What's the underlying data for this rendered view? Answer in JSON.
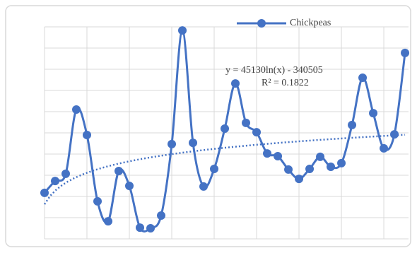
{
  "chart_data": {
    "type": "line",
    "smooth": true,
    "x": [
      1,
      2,
      3,
      4,
      5,
      6,
      7,
      8,
      9,
      10,
      11,
      12,
      13,
      14,
      15,
      16,
      17,
      18,
      19,
      20,
      21,
      22,
      23,
      24,
      25,
      26,
      27,
      28,
      29,
      30,
      31,
      32,
      33,
      34,
      35
    ],
    "series": [
      {
        "name": "Chickpeas",
        "color": "#4472c4",
        "values": [
          2.17,
          2.73,
          3.07,
          6.1,
          4.9,
          1.77,
          0.83,
          3.2,
          2.5,
          0.53,
          0.5,
          1.1,
          4.47,
          9.83,
          4.53,
          2.47,
          3.3,
          5.2,
          7.33,
          5.47,
          5.03,
          4.03,
          3.9,
          3.27,
          2.83,
          3.3,
          3.87,
          3.4,
          3.57,
          5.37,
          7.6,
          5.93,
          4.27,
          4.93,
          8.77
        ]
      }
    ],
    "xlim": [
      1,
      35.33
    ],
    "xticks": [
      1,
      5,
      9,
      13,
      17,
      21,
      25,
      29,
      33
    ],
    "ylim": [
      0,
      10
    ],
    "yticks": [
      0,
      1,
      2,
      3,
      4,
      5,
      6,
      7,
      8,
      9,
      10
    ],
    "grid": true,
    "legend": "top",
    "trendline": {
      "type": "logarithmic",
      "equation": "y = 45130ln(x) - 340505",
      "r_squared": "R² = 0.1822"
    }
  }
}
